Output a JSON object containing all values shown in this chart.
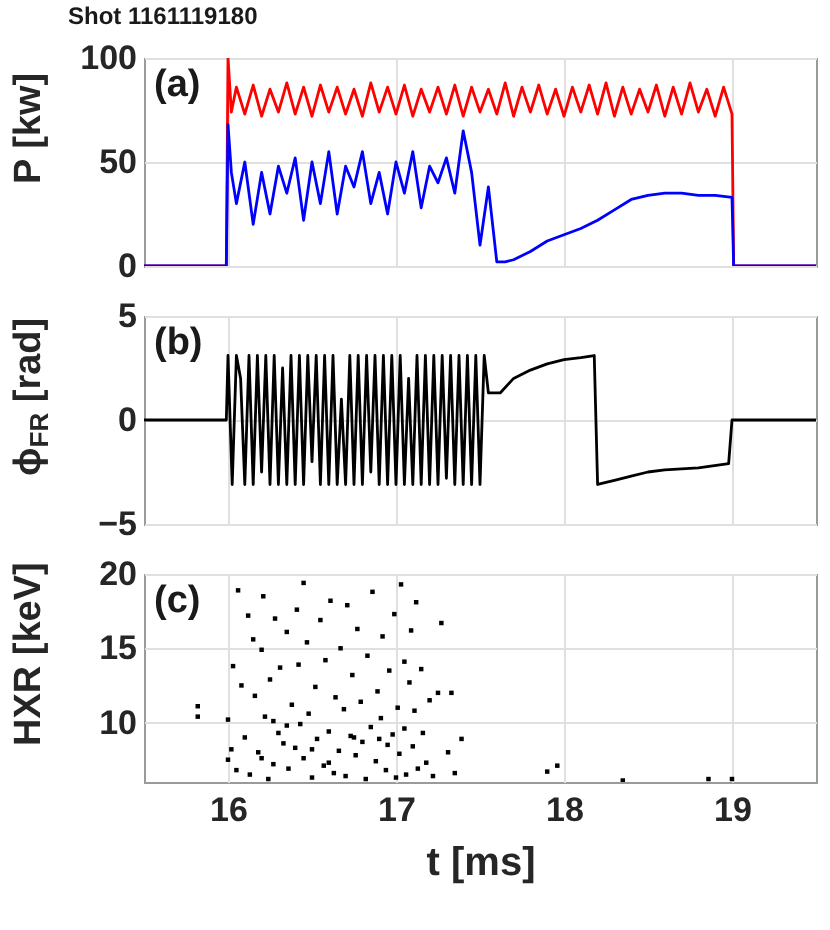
{
  "chart_data": [
    {
      "type": "line",
      "title": "Shot 1161119180",
      "ylabel": "P [kw]",
      "annotations": [
        "(a)"
      ],
      "xlim": [
        15.5,
        19.5
      ],
      "xticks": [
        16,
        17,
        18,
        19
      ],
      "ylim": [
        0,
        100
      ],
      "yticks": [
        0,
        50,
        100
      ],
      "grid": true,
      "tick_labels": "y",
      "series": [
        {
          "color": "#ff0000",
          "x": [
            15.5,
            15.99,
            16.0,
            16.02,
            16.05,
            16.1,
            16.15,
            16.2,
            16.25,
            16.3,
            16.35,
            16.4,
            16.45,
            16.5,
            16.55,
            16.6,
            16.65,
            16.7,
            16.75,
            16.8,
            16.85,
            16.9,
            16.95,
            17.0,
            17.05,
            17.1,
            17.15,
            17.2,
            17.25,
            17.3,
            17.35,
            17.4,
            17.45,
            17.5,
            17.55,
            17.6,
            17.65,
            17.7,
            17.75,
            17.8,
            17.85,
            17.9,
            17.95,
            18.0,
            18.05,
            18.1,
            18.15,
            18.2,
            18.25,
            18.3,
            18.35,
            18.4,
            18.45,
            18.5,
            18.55,
            18.6,
            18.65,
            18.7,
            18.75,
            18.8,
            18.85,
            18.9,
            18.95,
            19.0,
            19.01,
            19.5
          ],
          "values": [
            0,
            0,
            100,
            74,
            86,
            73,
            87,
            72,
            85,
            74,
            88,
            73,
            86,
            72,
            87,
            74,
            86,
            73,
            85,
            72,
            88,
            74,
            86,
            73,
            87,
            72,
            85,
            74,
            86,
            73,
            87,
            72,
            86,
            74,
            85,
            73,
            88,
            72,
            86,
            74,
            87,
            73,
            85,
            72,
            86,
            74,
            87,
            73,
            88,
            72,
            86,
            73,
            85,
            74,
            87,
            72,
            86,
            73,
            88,
            74,
            85,
            72,
            86,
            73,
            0,
            0
          ]
        },
        {
          "color": "#0000ff",
          "x": [
            15.5,
            15.99,
            16.0,
            16.02,
            16.05,
            16.1,
            16.15,
            16.2,
            16.25,
            16.3,
            16.35,
            16.4,
            16.45,
            16.5,
            16.55,
            16.6,
            16.65,
            16.7,
            16.75,
            16.8,
            16.85,
            16.9,
            16.95,
            17.0,
            17.05,
            17.1,
            17.15,
            17.2,
            17.25,
            17.3,
            17.35,
            17.4,
            17.45,
            17.5,
            17.55,
            17.6,
            17.65,
            17.7,
            17.8,
            17.9,
            18.0,
            18.1,
            18.2,
            18.3,
            18.4,
            18.5,
            18.6,
            18.7,
            18.8,
            18.9,
            19.0,
            19.01,
            19.5
          ],
          "values": [
            0,
            0,
            68,
            45,
            30,
            50,
            20,
            45,
            25,
            48,
            35,
            52,
            22,
            50,
            30,
            55,
            25,
            48,
            38,
            55,
            30,
            45,
            25,
            50,
            35,
            55,
            28,
            48,
            40,
            52,
            35,
            65,
            45,
            10,
            38,
            2,
            2,
            3,
            7,
            12,
            15,
            18,
            22,
            27,
            32,
            34,
            35,
            35,
            34,
            34,
            33,
            0,
            0
          ]
        }
      ]
    },
    {
      "type": "line",
      "ylabel": "ϕ$_{FR}$ [rad]",
      "annotations": [
        "(b)"
      ],
      "xlim": [
        15.5,
        19.5
      ],
      "xticks": [
        16,
        17,
        18,
        19
      ],
      "ylim": [
        -5,
        5
      ],
      "yticks": [
        -5,
        0,
        5
      ],
      "grid": true,
      "tick_labels": "y",
      "series": [
        {
          "color": "#000000",
          "x": [
            15.5,
            15.99,
            16.0,
            16.025,
            16.05,
            16.075,
            16.1,
            16.125,
            16.15,
            16.175,
            16.2,
            16.225,
            16.25,
            16.275,
            16.3,
            16.325,
            16.35,
            16.375,
            16.4,
            16.425,
            16.45,
            16.475,
            16.5,
            16.525,
            16.55,
            16.575,
            16.6,
            16.625,
            16.65,
            16.675,
            16.7,
            16.725,
            16.75,
            16.775,
            16.8,
            16.825,
            16.85,
            16.875,
            16.9,
            16.925,
            16.95,
            16.975,
            17.0,
            17.025,
            17.05,
            17.075,
            17.1,
            17.125,
            17.15,
            17.175,
            17.2,
            17.225,
            17.25,
            17.275,
            17.3,
            17.325,
            17.35,
            17.375,
            17.4,
            17.425,
            17.45,
            17.475,
            17.5,
            17.525,
            17.55,
            17.58,
            17.62,
            17.7,
            17.8,
            17.9,
            18.0,
            18.1,
            18.18,
            18.2,
            18.3,
            18.4,
            18.5,
            18.6,
            18.8,
            18.98,
            19.0,
            19.5
          ],
          "values": [
            0,
            0,
            3.1,
            -3.1,
            3.1,
            2.0,
            -3.1,
            3.1,
            -3.1,
            3.1,
            -2.5,
            3.1,
            -3.1,
            3.1,
            -3.1,
            2.5,
            -3.1,
            3.1,
            -3.1,
            3.1,
            -3.1,
            3.1,
            -2.0,
            3.1,
            -3.1,
            3.1,
            -3.1,
            3.1,
            -3.1,
            1.0,
            -3.1,
            3.1,
            -3.1,
            3.1,
            -3.1,
            3.1,
            -2.5,
            3.1,
            -3.1,
            3.1,
            -3.1,
            3.1,
            -3.1,
            3.1,
            -3.1,
            2.0,
            -3.1,
            3.1,
            -3.1,
            3.1,
            -3.1,
            3.1,
            -3.1,
            3.1,
            -2.8,
            3.1,
            -3.1,
            3.1,
            -3.1,
            3.1,
            -3.1,
            3.1,
            -3.1,
            3.1,
            1.3,
            1.3,
            1.3,
            2.0,
            2.4,
            2.7,
            2.9,
            3.0,
            3.1,
            -3.1,
            -2.9,
            -2.7,
            -2.5,
            -2.4,
            -2.3,
            -2.1,
            0,
            0
          ]
        }
      ]
    },
    {
      "type": "scatter",
      "xlabel": "t [ms]",
      "ylabel": "HXR [keV]",
      "annotations": [
        "(c)"
      ],
      "xlim": [
        15.5,
        19.5
      ],
      "xticks": [
        16,
        17,
        18,
        19
      ],
      "ylim": [
        6,
        20
      ],
      "yticks": [
        10,
        15,
        20
      ],
      "grid": true,
      "marker": "square",
      "series": [
        {
          "color": "#000000",
          "x": [
            15.82,
            15.82,
            16.0,
            16.0,
            16.02,
            16.03,
            16.05,
            16.06,
            16.08,
            16.1,
            16.12,
            16.13,
            16.15,
            16.16,
            16.18,
            16.2,
            16.21,
            16.22,
            16.24,
            16.25,
            16.27,
            16.28,
            16.3,
            16.31,
            16.33,
            16.35,
            16.36,
            16.38,
            16.4,
            16.41,
            16.42,
            16.43,
            16.45,
            16.45,
            16.47,
            16.48,
            16.5,
            16.52,
            16.53,
            16.55,
            16.57,
            16.58,
            16.6,
            16.61,
            16.63,
            16.64,
            16.66,
            16.67,
            16.69,
            16.7,
            16.71,
            16.73,
            16.74,
            16.76,
            16.77,
            16.79,
            16.8,
            16.82,
            16.83,
            16.85,
            16.86,
            16.88,
            16.89,
            16.91,
            16.92,
            16.94,
            16.95,
            16.96,
            16.98,
            16.99,
            17.0,
            17.01,
            17.02,
            17.03,
            17.05,
            17.05,
            17.06,
            17.08,
            17.09,
            17.1,
            17.11,
            17.12,
            17.13,
            17.15,
            17.16,
            17.18,
            17.2,
            17.22,
            17.25,
            17.27,
            17.31,
            17.33,
            17.35,
            17.39,
            17.9,
            17.96,
            18.35,
            18.86,
            19.0,
            16.2,
            16.35,
            16.6,
            16.9,
            16.75,
            16.5,
            16.27
          ],
          "values": [
            11.1,
            10.4,
            7.5,
            10.2,
            8.2,
            13.8,
            6.8,
            18.9,
            12.5,
            9.0,
            17.2,
            6.5,
            15.6,
            11.8,
            8.0,
            14.9,
            18.5,
            10.4,
            6.2,
            12.9,
            7.2,
            17.0,
            9.3,
            13.7,
            8.6,
            16.1,
            6.9,
            11.2,
            8.3,
            17.6,
            13.9,
            9.9,
            7.6,
            19.4,
            15.4,
            10.6,
            6.3,
            12.4,
            8.9,
            16.9,
            7.1,
            14.2,
            9.4,
            18.2,
            6.6,
            11.7,
            8.1,
            15.0,
            10.9,
            6.4,
            17.9,
            9.1,
            13.2,
            7.8,
            16.3,
            11.4,
            8.7,
            6.2,
            14.5,
            9.7,
            18.8,
            7.4,
            12.1,
            10.3,
            15.8,
            6.8,
            8.5,
            13.5,
            9.2,
            17.3,
            6.3,
            11.0,
            7.9,
            19.3,
            14.1,
            9.6,
            6.5,
            12.7,
            16.2,
            8.4,
            10.8,
            18.1,
            6.9,
            13.6,
            9.3,
            7.3,
            11.5,
            6.4,
            12.0,
            16.7,
            8.0,
            12.0,
            6.6,
            8.9,
            6.7,
            7.1,
            6.1,
            6.2,
            6.2,
            7.6,
            9.8,
            7.3,
            8.9,
            9.0,
            8.2,
            10.1
          ]
        }
      ]
    }
  ]
}
